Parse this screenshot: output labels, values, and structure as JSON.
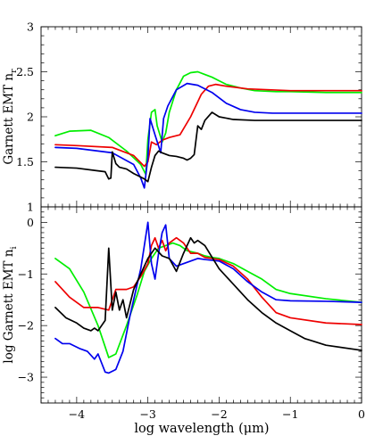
{
  "chart_data": [
    {
      "type": "line",
      "ylabel": "Garnett EMT n",
      "ylabel_sub": "r",
      "xlim": [
        -4.5,
        0
      ],
      "ylim": [
        1,
        3
      ],
      "yticks": [
        1,
        1.5,
        2,
        2.5,
        3
      ],
      "ytick_labels": [
        "1",
        "1.5",
        "2",
        "2.5",
        "3"
      ],
      "grid": false,
      "series": [
        {
          "color": "#00ee00",
          "x": [
            -4.3,
            -4.1,
            -3.8,
            -3.55,
            -3.3,
            -3.1,
            -3.03,
            -3.0,
            -2.95,
            -2.9,
            -2.87,
            -2.8,
            -2.75,
            -2.7,
            -2.6,
            -2.5,
            -2.4,
            -2.3,
            -2.2,
            -2.1,
            -2.0,
            -1.9,
            -1.7,
            -1.5,
            -1.2,
            -1.0,
            -0.5,
            0.0
          ],
          "y": [
            1.79,
            1.84,
            1.85,
            1.77,
            1.62,
            1.47,
            1.36,
            1.75,
            2.05,
            2.08,
            1.9,
            1.72,
            1.82,
            2.05,
            2.3,
            2.45,
            2.49,
            2.5,
            2.47,
            2.44,
            2.4,
            2.36,
            2.32,
            2.29,
            2.28,
            2.28,
            2.27,
            2.27
          ]
        },
        {
          "color": "#ee0000",
          "x": [
            -4.3,
            -4.0,
            -3.5,
            -3.2,
            -3.05,
            -3.0,
            -2.95,
            -2.88,
            -2.8,
            -2.7,
            -2.55,
            -2.4,
            -2.25,
            -2.15,
            -2.05,
            -1.9,
            -1.6,
            -1.3,
            -1.0,
            -0.5,
            0.0
          ],
          "y": [
            1.69,
            1.68,
            1.66,
            1.57,
            1.45,
            1.5,
            1.72,
            1.69,
            1.74,
            1.77,
            1.8,
            2.0,
            2.25,
            2.34,
            2.36,
            2.34,
            2.31,
            2.3,
            2.29,
            2.29,
            2.29
          ]
        },
        {
          "color": "#0000ee",
          "x": [
            -4.3,
            -4.0,
            -3.5,
            -3.2,
            -3.1,
            -3.05,
            -3.0,
            -2.97,
            -2.9,
            -2.82,
            -2.78,
            -2.72,
            -2.6,
            -2.45,
            -2.3,
            -2.1,
            -1.9,
            -1.7,
            -1.5,
            -1.25,
            -1.0,
            -0.5,
            0.0
          ],
          "y": [
            1.66,
            1.65,
            1.6,
            1.47,
            1.32,
            1.21,
            1.55,
            1.98,
            1.8,
            1.6,
            1.98,
            2.12,
            2.3,
            2.37,
            2.35,
            2.27,
            2.15,
            2.08,
            2.05,
            2.04,
            2.04,
            2.04,
            2.04
          ]
        },
        {
          "color": "#000000",
          "x": [
            -4.3,
            -4.0,
            -3.7,
            -3.6,
            -3.55,
            -3.52,
            -3.5,
            -3.45,
            -3.4,
            -3.3,
            -3.2,
            -3.1,
            -3.05,
            -3.0,
            -2.95,
            -2.9,
            -2.85,
            -2.8,
            -2.7,
            -2.6,
            -2.5,
            -2.45,
            -2.4,
            -2.35,
            -2.3,
            -2.25,
            -2.2,
            -2.1,
            -2.0,
            -1.8,
            -1.5,
            -1.0,
            -0.5,
            0.0
          ],
          "y": [
            1.44,
            1.43,
            1.4,
            1.39,
            1.31,
            1.32,
            1.61,
            1.48,
            1.44,
            1.42,
            1.37,
            1.33,
            1.31,
            1.28,
            1.44,
            1.57,
            1.62,
            1.6,
            1.57,
            1.56,
            1.54,
            1.52,
            1.54,
            1.58,
            1.9,
            1.86,
            1.96,
            2.05,
            2.0,
            1.97,
            1.96,
            1.96,
            1.96,
            1.96
          ]
        }
      ]
    },
    {
      "type": "line",
      "xlabel": "log wavelength (μm)",
      "ylabel": "log Garnett EMT n",
      "ylabel_sub": "i",
      "xlim": [
        -4.5,
        0
      ],
      "ylim": [
        -3.5,
        0.3
      ],
      "xticks": [
        -4,
        -3,
        -2,
        -1,
        0
      ],
      "xtick_labels": [
        "−4",
        "−3",
        "−2",
        "−1",
        "0"
      ],
      "yticks": [
        -3,
        -2,
        -1,
        0
      ],
      "ytick_labels": [
        "−3",
        "−2",
        "−1",
        "0"
      ],
      "grid": false,
      "series": [
        {
          "color": "#00ee00",
          "x": [
            -4.3,
            -4.1,
            -3.9,
            -3.7,
            -3.55,
            -3.45,
            -3.3,
            -3.15,
            -3.05,
            -2.95,
            -2.85,
            -2.75,
            -2.65,
            -2.55,
            -2.45,
            -2.3,
            -2.2,
            -2.1,
            -2.0,
            -1.8,
            -1.6,
            -1.4,
            -1.2,
            -1.0,
            -0.5,
            0.0
          ],
          "y": [
            -0.7,
            -0.9,
            -1.35,
            -2.0,
            -2.62,
            -2.55,
            -2.0,
            -1.4,
            -0.95,
            -0.7,
            -0.5,
            -0.45,
            -0.4,
            -0.45,
            -0.55,
            -0.6,
            -0.65,
            -0.68,
            -0.7,
            -0.8,
            -0.95,
            -1.1,
            -1.3,
            -1.38,
            -1.48,
            -1.55
          ]
        },
        {
          "color": "#ee0000",
          "x": [
            -4.3,
            -4.1,
            -3.9,
            -3.7,
            -3.55,
            -3.45,
            -3.3,
            -3.2,
            -3.1,
            -3.0,
            -2.95,
            -2.9,
            -2.85,
            -2.8,
            -2.75,
            -2.7,
            -2.6,
            -2.5,
            -2.4,
            -2.3,
            -2.2,
            -2.0,
            -1.8,
            -1.6,
            -1.4,
            -1.2,
            -1.0,
            -0.5,
            0.0
          ],
          "y": [
            -1.15,
            -1.45,
            -1.65,
            -1.65,
            -1.7,
            -1.3,
            -1.3,
            -1.25,
            -1.05,
            -0.8,
            -0.45,
            -0.3,
            -0.5,
            -0.35,
            -0.55,
            -0.4,
            -0.3,
            -0.4,
            -0.6,
            -0.6,
            -0.68,
            -0.72,
            -0.85,
            -1.1,
            -1.45,
            -1.75,
            -1.85,
            -1.95,
            -1.98
          ]
        },
        {
          "color": "#0000ee",
          "x": [
            -4.3,
            -4.2,
            -4.1,
            -3.95,
            -3.85,
            -3.75,
            -3.7,
            -3.6,
            -3.55,
            -3.45,
            -3.35,
            -3.25,
            -3.1,
            -3.0,
            -2.95,
            -2.9,
            -2.85,
            -2.8,
            -2.75,
            -2.7,
            -2.6,
            -2.5,
            -2.4,
            -2.3,
            -2.2,
            -2.0,
            -1.8,
            -1.6,
            -1.4,
            -1.2,
            -1.0,
            -0.5,
            0.0
          ],
          "y": [
            -2.25,
            -2.35,
            -2.35,
            -2.45,
            -2.5,
            -2.65,
            -2.55,
            -2.9,
            -2.92,
            -2.85,
            -2.5,
            -1.8,
            -0.9,
            0.0,
            -0.8,
            -1.1,
            -0.6,
            -0.2,
            -0.05,
            -0.7,
            -0.85,
            -0.8,
            -0.75,
            -0.7,
            -0.72,
            -0.75,
            -0.9,
            -1.15,
            -1.35,
            -1.5,
            -1.52,
            -1.53,
            -1.55
          ]
        },
        {
          "color": "#000000",
          "x": [
            -4.3,
            -4.15,
            -4.0,
            -3.9,
            -3.8,
            -3.75,
            -3.7,
            -3.6,
            -3.55,
            -3.5,
            -3.45,
            -3.4,
            -3.35,
            -3.3,
            -3.2,
            -3.1,
            -3.0,
            -2.9,
            -2.8,
            -2.7,
            -2.6,
            -2.5,
            -2.4,
            -2.35,
            -2.3,
            -2.2,
            -2.0,
            -1.8,
            -1.6,
            -1.4,
            -1.2,
            -1.0,
            -0.8,
            -0.5,
            0.0
          ],
          "y": [
            -1.65,
            -1.85,
            -1.95,
            -2.05,
            -2.1,
            -2.05,
            -2.1,
            -1.9,
            -0.5,
            -1.7,
            -1.35,
            -1.7,
            -1.5,
            -1.85,
            -1.3,
            -1.0,
            -0.7,
            -0.5,
            -0.65,
            -0.7,
            -0.95,
            -0.6,
            -0.3,
            -0.4,
            -0.35,
            -0.45,
            -0.9,
            -1.2,
            -1.5,
            -1.75,
            -1.95,
            -2.1,
            -2.25,
            -2.38,
            -2.48
          ]
        }
      ]
    }
  ]
}
